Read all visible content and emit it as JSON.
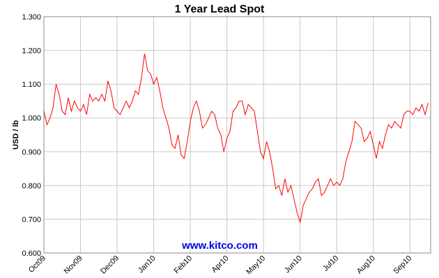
{
  "chart_data": {
    "type": "line",
    "title": "1 Year Lead Spot",
    "ylabel": "USD / lb",
    "watermark": "www.kitco.com",
    "series": [
      {
        "name": "Lead",
        "color": "#ff0000",
        "values": [
          1.02,
          0.98,
          1.0,
          1.03,
          1.1,
          1.07,
          1.02,
          1.01,
          1.06,
          1.02,
          1.05,
          1.03,
          1.02,
          1.04,
          1.01,
          1.07,
          1.05,
          1.06,
          1.05,
          1.07,
          1.05,
          1.11,
          1.08,
          1.03,
          1.02,
          1.01,
          1.03,
          1.05,
          1.03,
          1.05,
          1.08,
          1.07,
          1.12,
          1.19,
          1.14,
          1.13,
          1.1,
          1.12,
          1.08,
          1.03,
          1.0,
          0.97,
          0.92,
          0.91,
          0.95,
          0.89,
          0.88,
          0.93,
          0.99,
          1.03,
          1.05,
          1.02,
          0.97,
          0.98,
          1.0,
          1.02,
          1.01,
          0.97,
          0.95,
          0.9,
          0.94,
          0.96,
          1.02,
          1.03,
          1.05,
          1.05,
          1.01,
          1.04,
          1.03,
          1.02,
          0.96,
          0.9,
          0.88,
          0.93,
          0.9,
          0.85,
          0.79,
          0.8,
          0.77,
          0.82,
          0.78,
          0.8,
          0.76,
          0.72,
          0.69,
          0.74,
          0.76,
          0.78,
          0.79,
          0.81,
          0.82,
          0.77,
          0.78,
          0.8,
          0.82,
          0.8,
          0.81,
          0.8,
          0.82,
          0.87,
          0.9,
          0.93,
          0.99,
          0.98,
          0.97,
          0.93,
          0.94,
          0.96,
          0.92,
          0.88,
          0.93,
          0.91,
          0.95,
          0.98,
          0.97,
          0.99,
          0.98,
          0.97,
          1.01,
          1.02,
          1.02,
          1.01,
          1.03,
          1.02,
          1.04,
          1.01,
          1.045
        ]
      }
    ],
    "xlim": [
      0,
      126.8
    ],
    "xticks": [
      {
        "value": 0,
        "label": "Oct09"
      },
      {
        "value": 12,
        "label": "Nov09"
      },
      {
        "value": 24,
        "label": "Dec09"
      },
      {
        "value": 36,
        "label": "Jan10"
      },
      {
        "value": 48,
        "label": "Feb10"
      },
      {
        "value": 60,
        "label": "Apr10"
      },
      {
        "value": 72,
        "label": "May10"
      },
      {
        "value": 84,
        "label": "Jun10"
      },
      {
        "value": 96,
        "label": "Jul10"
      },
      {
        "value": 108,
        "label": "Aug10"
      },
      {
        "value": 120,
        "label": "Sep10"
      }
    ],
    "ylim": [
      0.6,
      1.3
    ],
    "yticks": [
      {
        "value": 0.6,
        "label": "0.600"
      },
      {
        "value": 0.7,
        "label": "0.700"
      },
      {
        "value": 0.8,
        "label": "0.800"
      },
      {
        "value": 0.9,
        "label": "0.900"
      },
      {
        "value": 1.0,
        "label": "1.000"
      },
      {
        "value": 1.1,
        "label": "1.100"
      },
      {
        "value": 1.2,
        "label": "1.200"
      },
      {
        "value": 1.3,
        "label": "1.300"
      }
    ],
    "grid": true
  }
}
